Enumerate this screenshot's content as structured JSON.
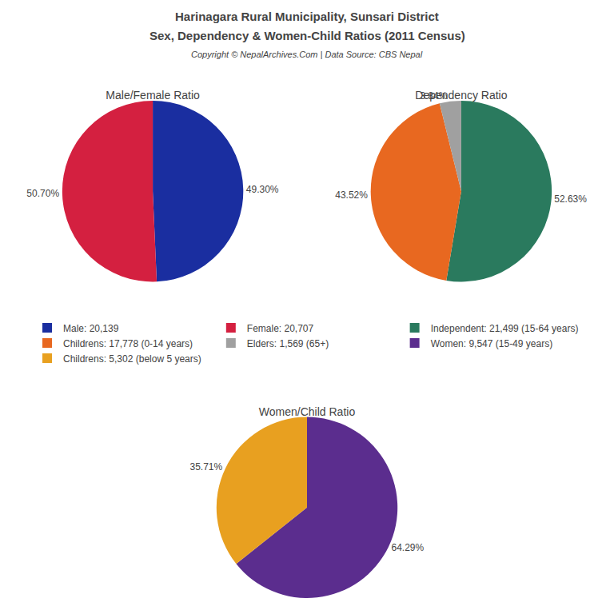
{
  "title": "Harinagara Rural Municipality, Sunsari District",
  "subtitle": "Sex, Dependency & Women-Child Ratios (2011 Census)",
  "annotations": [
    "Copyright © NepalArchives.Com | Data Source: CBS Nepal"
  ],
  "chart_data": [
    {
      "type": "pie",
      "title": "Male/Female Ratio",
      "categories": [
        "Male: 20,139",
        "Female: 20,707"
      ],
      "values": [
        49.3,
        50.7
      ],
      "value_labels": [
        "49.30%",
        "50.70%"
      ],
      "colors": [
        "#1a2ea0",
        "#d42040"
      ],
      "data_labels": true,
      "legend": "center"
    },
    {
      "type": "pie",
      "title": "Dependency Ratio",
      "categories": [
        "Independent: 21,499 (15-64 years)",
        "Childrens: 17,778 (0-14 years)",
        "Elders: 1,569 (65+)"
      ],
      "values": [
        52.63,
        43.52,
        3.84
      ],
      "value_labels": [
        "52.63%",
        "43.52%",
        "3.84%"
      ],
      "colors": [
        "#2a7a5e",
        "#e86820",
        "#a0a0a0"
      ],
      "data_labels": true,
      "legend": "center"
    },
    {
      "type": "pie",
      "title": "Women/Child Ratio",
      "categories": [
        "Women: 9,547 (15-49 years)",
        "Childrens: 5,302 (below 5 years)"
      ],
      "values": [
        64.29,
        35.71
      ],
      "value_labels": [
        "64.29%",
        "35.71%"
      ],
      "colors": [
        "#5b2d8e",
        "#e8a020"
      ],
      "data_labels": true,
      "legend": "center"
    }
  ]
}
